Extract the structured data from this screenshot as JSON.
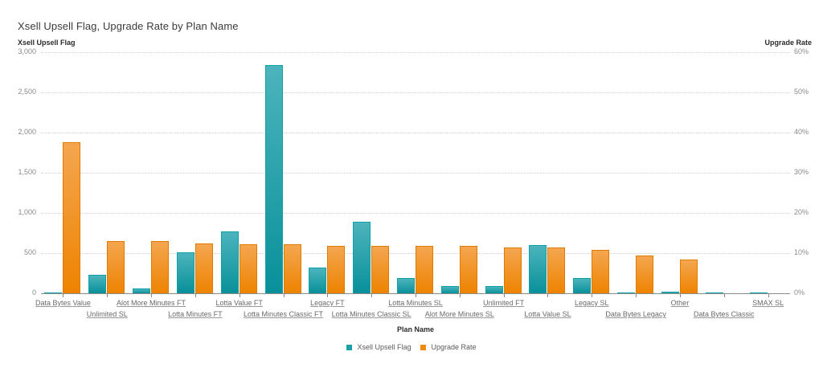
{
  "chart": {
    "title": "Xsell Upsell Flag, Upgrade Rate by Plan Name",
    "left_axis_title": "Xsell Upsell Flag",
    "right_axis_title": "Upgrade Rate",
    "x_axis_title": "Plan Name",
    "left_ticks": [
      "0",
      "500",
      "1,000",
      "1,500",
      "2,000",
      "2,500",
      "3,000"
    ],
    "right_ticks": [
      "0%",
      "10%",
      "20%",
      "30%",
      "40%",
      "50%",
      "60%"
    ],
    "colors": {
      "xsell": "#1a9ea7",
      "upgrade": "#f08a10"
    }
  },
  "legend": {
    "items": [
      {
        "label": "Xsell Upsell Flag",
        "color": "#1a9ea7"
      },
      {
        "label": "Upgrade Rate",
        "color": "#f08a10"
      }
    ]
  },
  "chart_data": {
    "type": "bar",
    "title": "Xsell Upsell Flag, Upgrade Rate by Plan Name",
    "xlabel": "Plan Name",
    "ylabel": "Xsell Upsell Flag",
    "y2label": "Upgrade Rate",
    "ylim": [
      0,
      3000
    ],
    "y2lim": [
      0,
      60
    ],
    "grid": true,
    "legend_position": "bottom",
    "categories": [
      "Data Bytes Value",
      "Unlimited SL",
      "Alot More Minutes FT",
      "Lotta Minutes FT",
      "Lotta Value FT",
      "Lotta Minutes Classic FT",
      "Legacy FT",
      "Lotta Minutes Classic SL",
      "Lotta Minutes SL",
      "Alot More Minutes SL",
      "Unlimited FT",
      "Lotta Value SL",
      "Legacy SL",
      "Data Bytes Legacy",
      "Other",
      "Data Bytes Classic",
      "SMAX SL"
    ],
    "series": [
      {
        "name": "Xsell Upsell Flag",
        "axis": "left",
        "values": [
          2,
          230,
          65,
          515,
          767,
          2843,
          317,
          893,
          190,
          87,
          95,
          605,
          195,
          4,
          20,
          0,
          0
        ]
      },
      {
        "name": "Upgrade Rate",
        "axis": "right",
        "unit": "%",
        "values": [
          37.6,
          13.0,
          13.0,
          12.5,
          12.2,
          12.2,
          11.9,
          11.9,
          11.9,
          11.8,
          11.4,
          11.4,
          10.8,
          9.5,
          8.4,
          0,
          0
        ]
      }
    ]
  }
}
